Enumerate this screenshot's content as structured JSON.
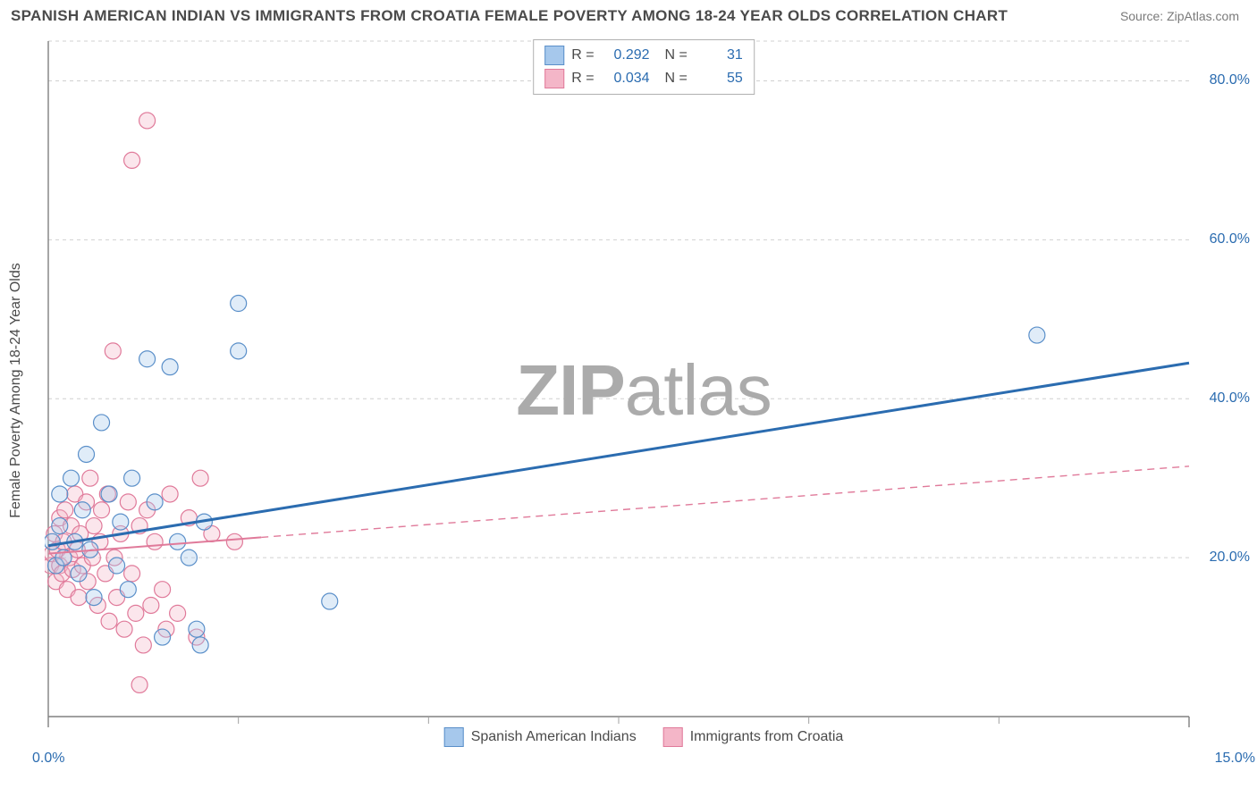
{
  "header": {
    "title": "SPANISH AMERICAN INDIAN VS IMMIGRANTS FROM CROATIA FEMALE POVERTY AMONG 18-24 YEAR OLDS CORRELATION CHART",
    "source": "Source: ZipAtlas.com"
  },
  "chart": {
    "type": "scatter",
    "ylabel": "Female Poverty Among 18-24 Year Olds",
    "xlim": [
      0,
      15
    ],
    "ylim": [
      0,
      85
    ],
    "x_ticks": [
      0,
      15
    ],
    "x_tick_labels": [
      "0.0%",
      "15.0%"
    ],
    "x_minor_ticks": [
      2.5,
      5.0,
      7.5,
      10.0,
      12.5
    ],
    "y_gridlines": [
      20,
      40,
      60,
      80
    ],
    "y_tick_labels": [
      "20.0%",
      "40.0%",
      "60.0%",
      "80.0%"
    ],
    "background_color": "#ffffff",
    "grid_color": "#d0d0d0",
    "axis_color": "#808080",
    "tick_color": "#a0a0a0",
    "label_color": "#4a4a4a",
    "tick_label_color": "#2b6cb0",
    "label_fontsize": 16,
    "tick_fontsize": 16,
    "marker_radius": 9,
    "marker_stroke_width": 1.2,
    "marker_fill_opacity": 0.35,
    "watermark": "ZIPatlas",
    "series": [
      {
        "name": "Spanish American Indians",
        "color_fill": "#a6c8ec",
        "color_stroke": "#5a8fc9",
        "R": "0.292",
        "N": "31",
        "trend": {
          "x1": 0,
          "y1": 21.5,
          "x2": 15,
          "y2": 44.5,
          "color": "#2b6cb0",
          "width": 3,
          "dash": null
        },
        "points": [
          [
            0.05,
            22
          ],
          [
            0.1,
            19
          ],
          [
            0.15,
            24
          ],
          [
            0.15,
            28
          ],
          [
            0.2,
            20
          ],
          [
            0.3,
            30
          ],
          [
            0.35,
            22
          ],
          [
            0.4,
            18
          ],
          [
            0.45,
            26
          ],
          [
            0.5,
            33
          ],
          [
            0.55,
            21
          ],
          [
            0.6,
            15
          ],
          [
            0.7,
            37
          ],
          [
            0.8,
            28
          ],
          [
            0.9,
            19
          ],
          [
            0.95,
            24.5
          ],
          [
            1.05,
            16
          ],
          [
            1.1,
            30
          ],
          [
            1.3,
            45
          ],
          [
            1.4,
            27
          ],
          [
            1.5,
            10
          ],
          [
            1.6,
            44
          ],
          [
            1.7,
            22
          ],
          [
            1.85,
            20
          ],
          [
            1.95,
            11
          ],
          [
            2.0,
            9
          ],
          [
            2.05,
            24.5
          ],
          [
            2.5,
            52
          ],
          [
            2.5,
            46
          ],
          [
            3.7,
            14.5
          ],
          [
            13.0,
            48
          ]
        ]
      },
      {
        "name": "Immigrants from Croatia",
        "color_fill": "#f4b6c8",
        "color_stroke": "#e07a9a",
        "R": "0.034",
        "N": "55",
        "trend": {
          "x1": 0,
          "y1": 20.5,
          "x2": 15,
          "y2": 31.5,
          "color": "#e07a9a",
          "width": 1.4,
          "dash": "8 6"
        },
        "trend_solid_until_x": 2.8,
        "points": [
          [
            0.03,
            19
          ],
          [
            0.05,
            20.5
          ],
          [
            0.08,
            23
          ],
          [
            0.1,
            17
          ],
          [
            0.12,
            21
          ],
          [
            0.15,
            19
          ],
          [
            0.15,
            25
          ],
          [
            0.18,
            18
          ],
          [
            0.2,
            22
          ],
          [
            0.22,
            26
          ],
          [
            0.25,
            16
          ],
          [
            0.28,
            20
          ],
          [
            0.3,
            24
          ],
          [
            0.32,
            18.5
          ],
          [
            0.35,
            28
          ],
          [
            0.38,
            21
          ],
          [
            0.4,
            15
          ],
          [
            0.42,
            23
          ],
          [
            0.45,
            19
          ],
          [
            0.5,
            27
          ],
          [
            0.52,
            17
          ],
          [
            0.55,
            30
          ],
          [
            0.58,
            20
          ],
          [
            0.6,
            24
          ],
          [
            0.65,
            14
          ],
          [
            0.68,
            22
          ],
          [
            0.7,
            26
          ],
          [
            0.75,
            18
          ],
          [
            0.78,
            28
          ],
          [
            0.8,
            12
          ],
          [
            0.85,
            46
          ],
          [
            0.87,
            20
          ],
          [
            0.9,
            15
          ],
          [
            0.95,
            23
          ],
          [
            1.0,
            11
          ],
          [
            1.05,
            27
          ],
          [
            1.1,
            70
          ],
          [
            1.1,
            18
          ],
          [
            1.15,
            13
          ],
          [
            1.2,
            24
          ],
          [
            1.25,
            9
          ],
          [
            1.3,
            75
          ],
          [
            1.3,
            26
          ],
          [
            1.35,
            14
          ],
          [
            1.4,
            22
          ],
          [
            1.5,
            16
          ],
          [
            1.55,
            11
          ],
          [
            1.6,
            28
          ],
          [
            1.7,
            13
          ],
          [
            1.85,
            25
          ],
          [
            1.95,
            10
          ],
          [
            2.0,
            30
          ],
          [
            2.15,
            23
          ],
          [
            2.45,
            22
          ],
          [
            1.2,
            4
          ]
        ]
      }
    ],
    "legend_top": [
      {
        "swatch_fill": "#a6c8ec",
        "swatch_stroke": "#5a8fc9",
        "R": "0.292",
        "N": "31"
      },
      {
        "swatch_fill": "#f4b6c8",
        "swatch_stroke": "#e07a9a",
        "R": "0.034",
        "N": "55"
      }
    ],
    "legend_bottom": [
      {
        "swatch_fill": "#a6c8ec",
        "swatch_stroke": "#5a8fc9",
        "label": "Spanish American Indians"
      },
      {
        "swatch_fill": "#f4b6c8",
        "swatch_stroke": "#e07a9a",
        "label": "Immigrants from Croatia"
      }
    ]
  }
}
